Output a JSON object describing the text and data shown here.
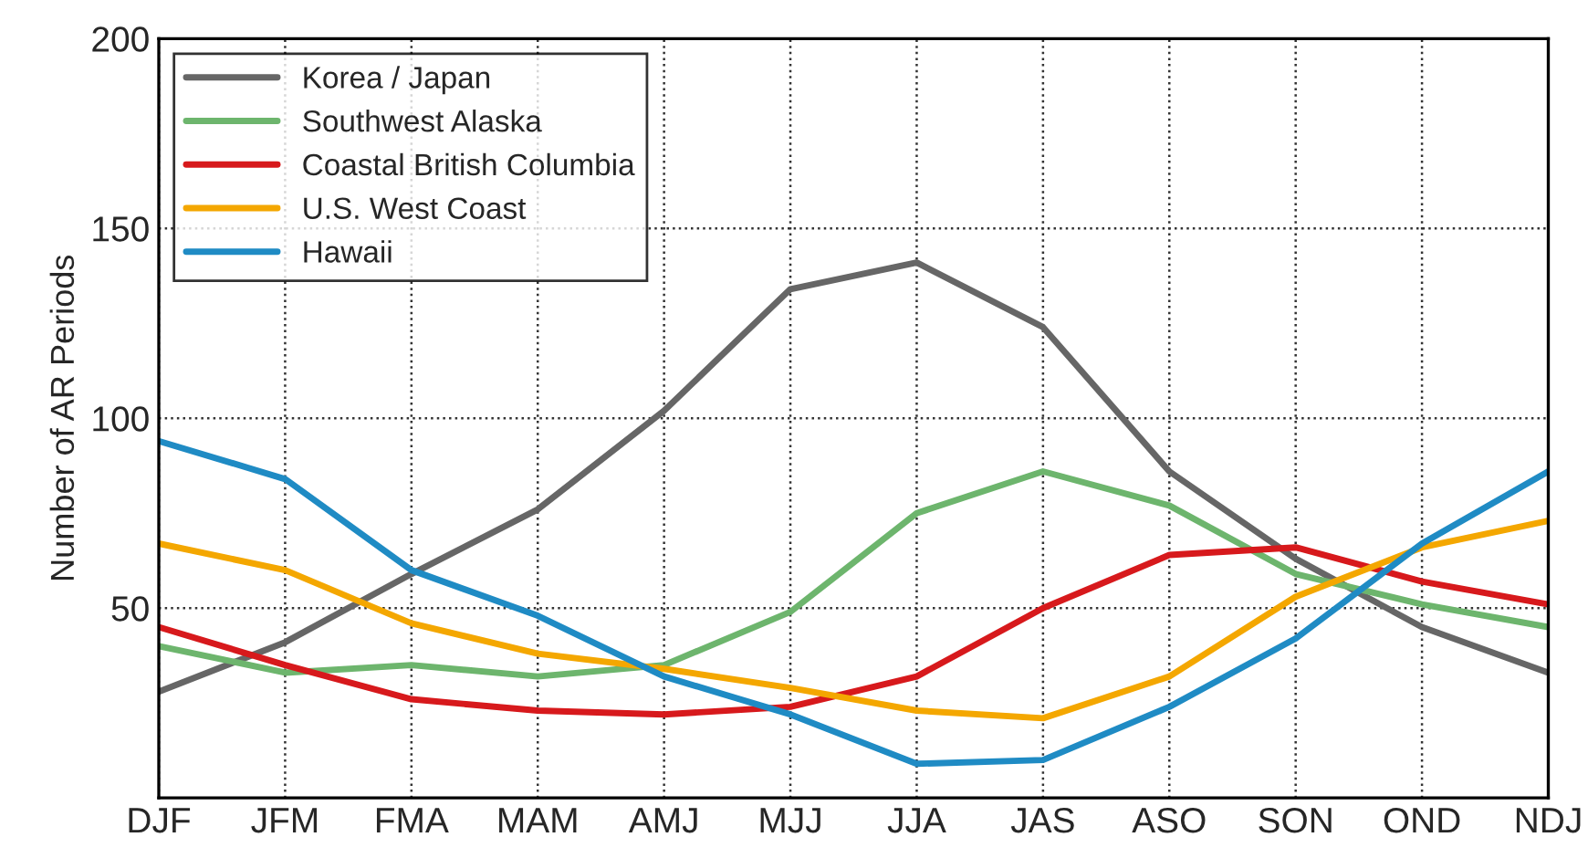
{
  "chart_data": {
    "type": "line",
    "ylabel": "Number of AR Periods",
    "categories": [
      "DJF",
      "JFM",
      "FMA",
      "MAM",
      "AMJ",
      "MJJ",
      "JJA",
      "JAS",
      "ASO",
      "SON",
      "OND",
      "NDJ"
    ],
    "series": [
      {
        "name": "Korea / Japan",
        "color": "#666666",
        "values": [
          28,
          41,
          59,
          76,
          102,
          134,
          141,
          124,
          86,
          63,
          45,
          33
        ]
      },
      {
        "name": "Southwest Alaska",
        "color": "#6db56d",
        "values": [
          40,
          33,
          35,
          32,
          35,
          49,
          75,
          86,
          77,
          59,
          51,
          45
        ]
      },
      {
        "name": "Coastal British Columbia",
        "color": "#d7191c",
        "values": [
          45,
          35,
          26,
          23,
          22,
          24,
          32,
          50,
          64,
          66,
          57,
          51
        ]
      },
      {
        "name": "U.S. West Coast",
        "color": "#f4a700",
        "values": [
          67,
          60,
          46,
          38,
          34,
          29,
          23,
          21,
          32,
          53,
          66,
          73
        ]
      },
      {
        "name": "Hawaii",
        "color": "#1f8bc4",
        "values": [
          94,
          84,
          60,
          48,
          32,
          22,
          9,
          10,
          24,
          42,
          67,
          86
        ]
      }
    ],
    "ylim": [
      0,
      200
    ],
    "yticks": [
      50,
      100,
      150,
      200
    ],
    "grid": true,
    "legend": "top left",
    "line_style": "solid",
    "marker": "none"
  }
}
